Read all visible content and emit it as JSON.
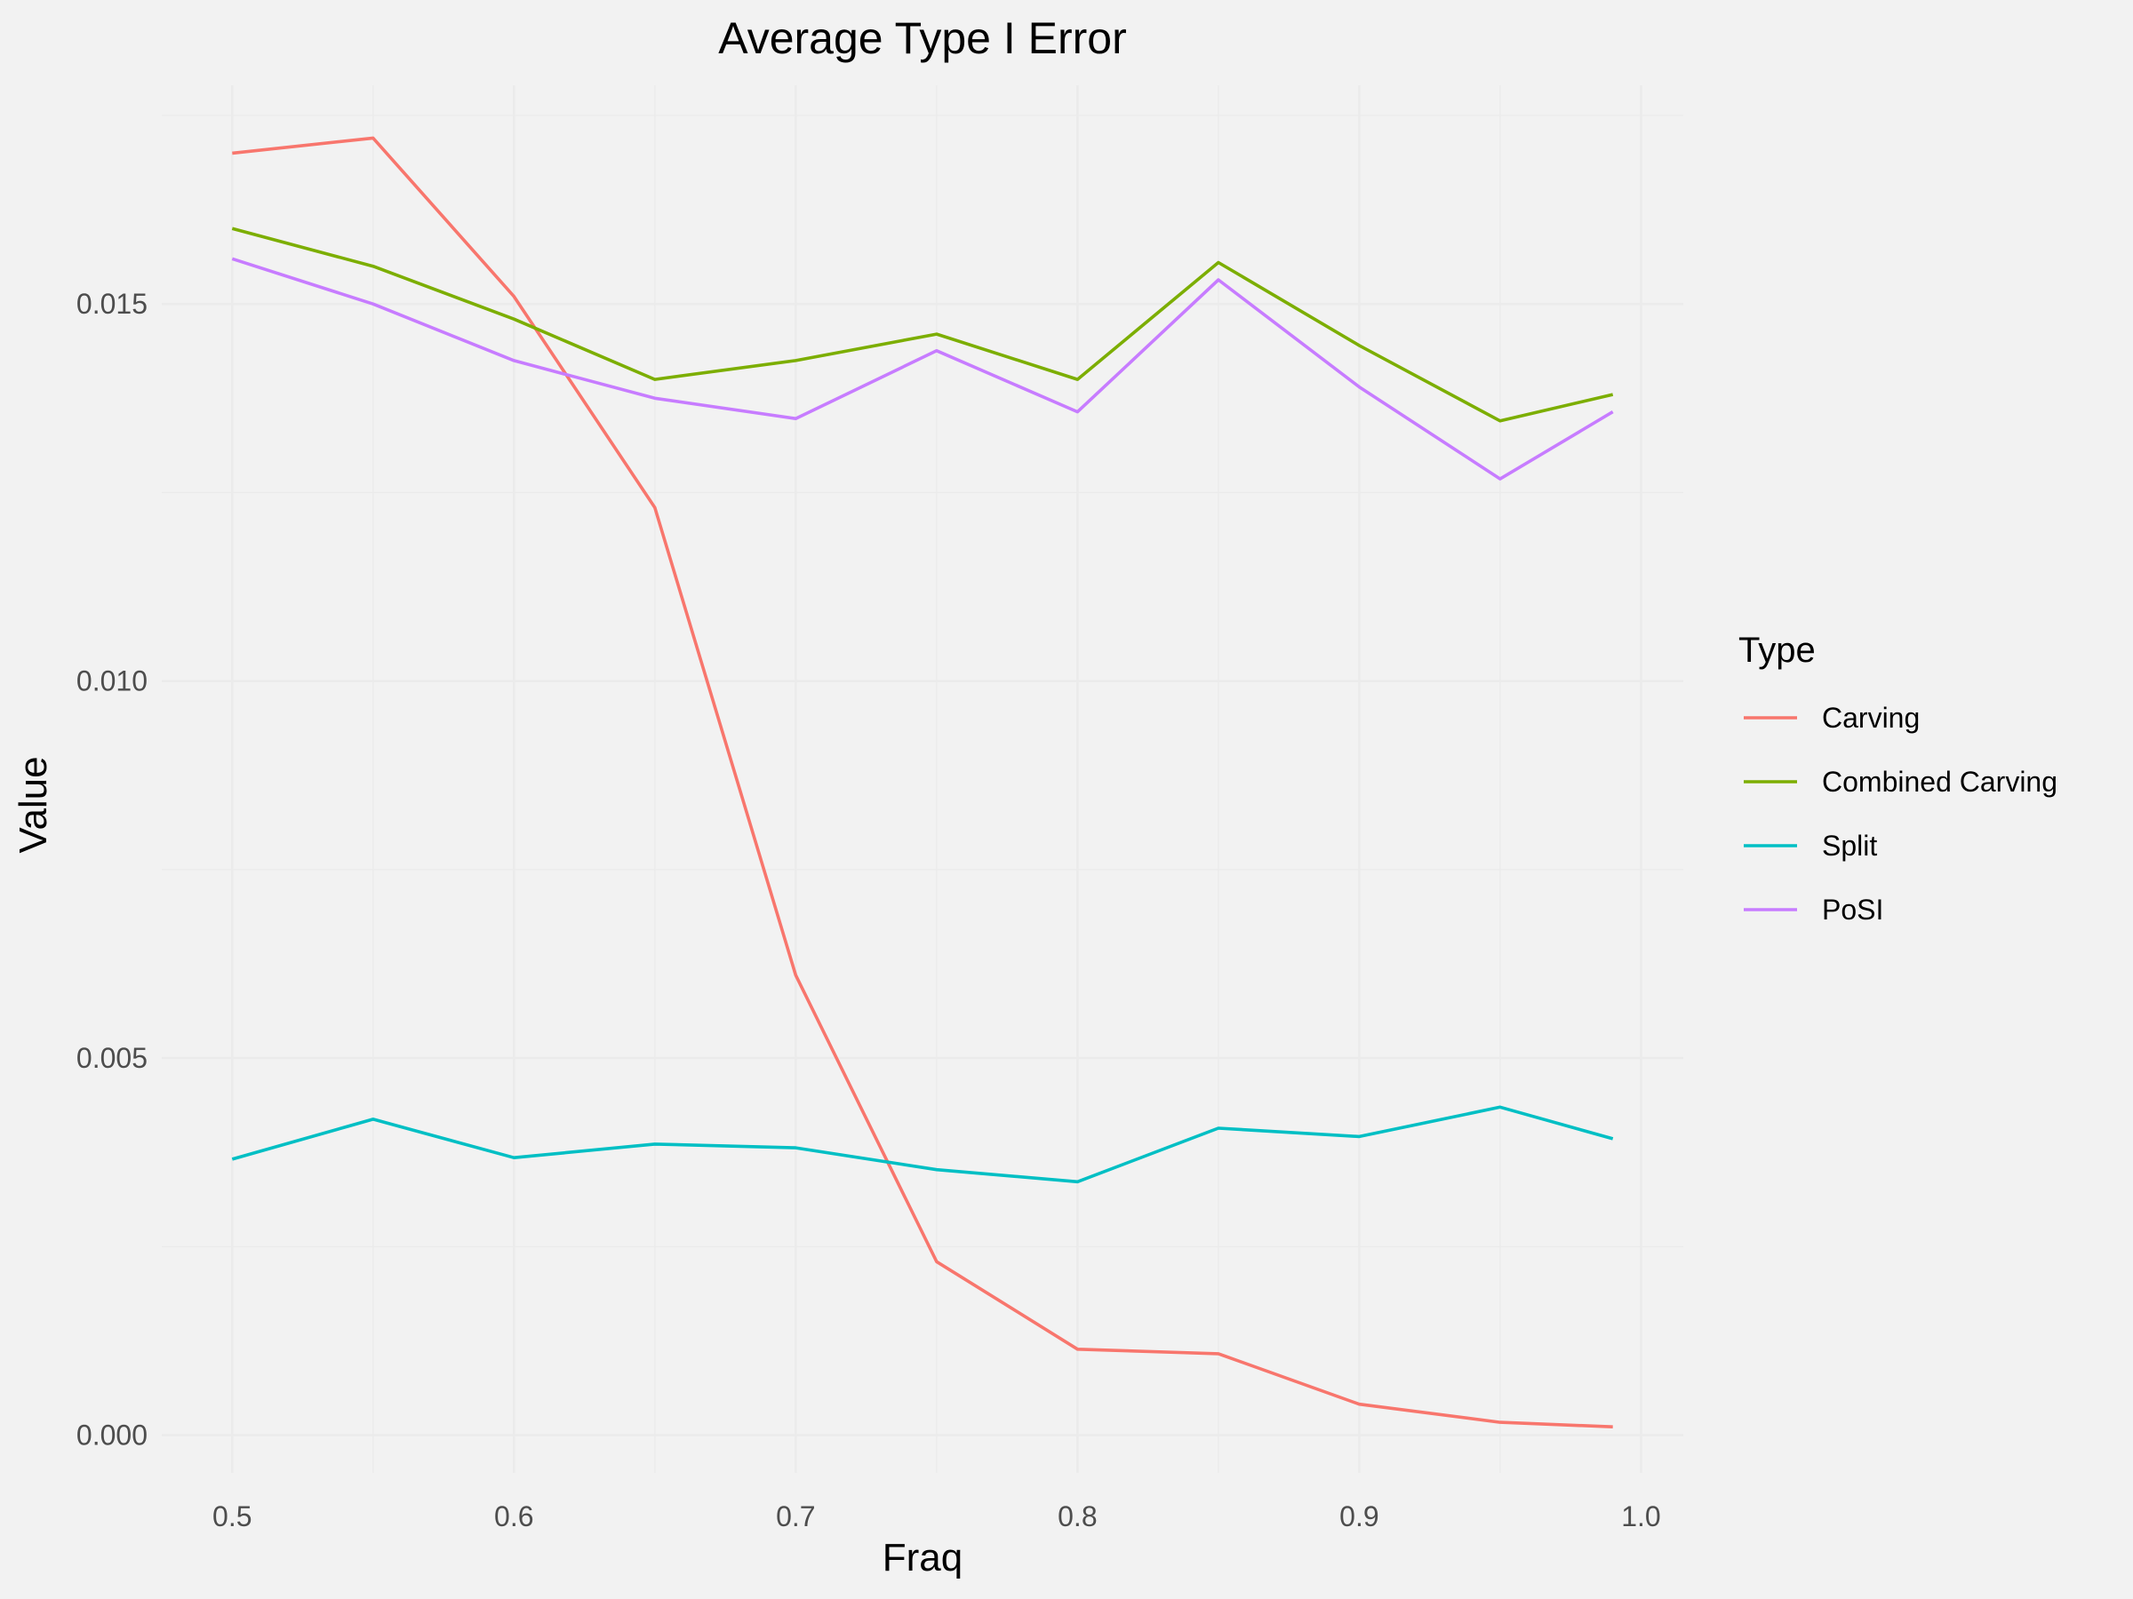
{
  "chart_data": {
    "type": "line",
    "title": "Average Type I Error",
    "xlabel": "Fraq",
    "ylabel": "Value",
    "xlim": [
      0.475,
      1.015
    ],
    "ylim": [
      -0.0005,
      0.0179
    ],
    "x_ticks": [
      0.5,
      0.6,
      0.7,
      0.8,
      0.9,
      1.0
    ],
    "x_tick_labels": [
      "0.5",
      "0.6",
      "0.7",
      "0.8",
      "0.9",
      "1.0"
    ],
    "y_ticks": [
      0.0,
      0.005,
      0.01,
      0.015
    ],
    "y_tick_labels": [
      "0.000",
      "0.005",
      "0.010",
      "0.015"
    ],
    "grid": true,
    "legend": {
      "title": "Type",
      "position": "right"
    },
    "x": [
      0.5,
      0.55,
      0.6,
      0.65,
      0.7,
      0.75,
      0.8,
      0.85,
      0.9,
      0.95,
      0.99
    ],
    "series": [
      {
        "name": "Carving",
        "color": "#F8766D",
        "values": [
          0.017,
          0.0172,
          0.0151,
          0.0123,
          0.0061,
          0.0023,
          0.00114,
          0.00108,
          0.00041,
          0.00017,
          0.00011
        ]
      },
      {
        "name": "Combined Carving",
        "color": "#7CAE00",
        "values": [
          0.016,
          0.0155,
          0.0148,
          0.014,
          0.01425,
          0.0146,
          0.014,
          0.01555,
          0.01445,
          0.01345,
          0.0138
        ]
      },
      {
        "name": "Split",
        "color": "#00BFC4",
        "values": [
          0.00366,
          0.00419,
          0.00368,
          0.00386,
          0.00381,
          0.00352,
          0.00336,
          0.00407,
          0.00396,
          0.00435,
          0.00393
        ]
      },
      {
        "name": "PoSI",
        "color": "#C77CFF",
        "values": [
          0.0156,
          0.015,
          0.01425,
          0.01375,
          0.01348,
          0.01438,
          0.01357,
          0.01532,
          0.0139,
          0.01268,
          0.01357
        ]
      }
    ]
  }
}
